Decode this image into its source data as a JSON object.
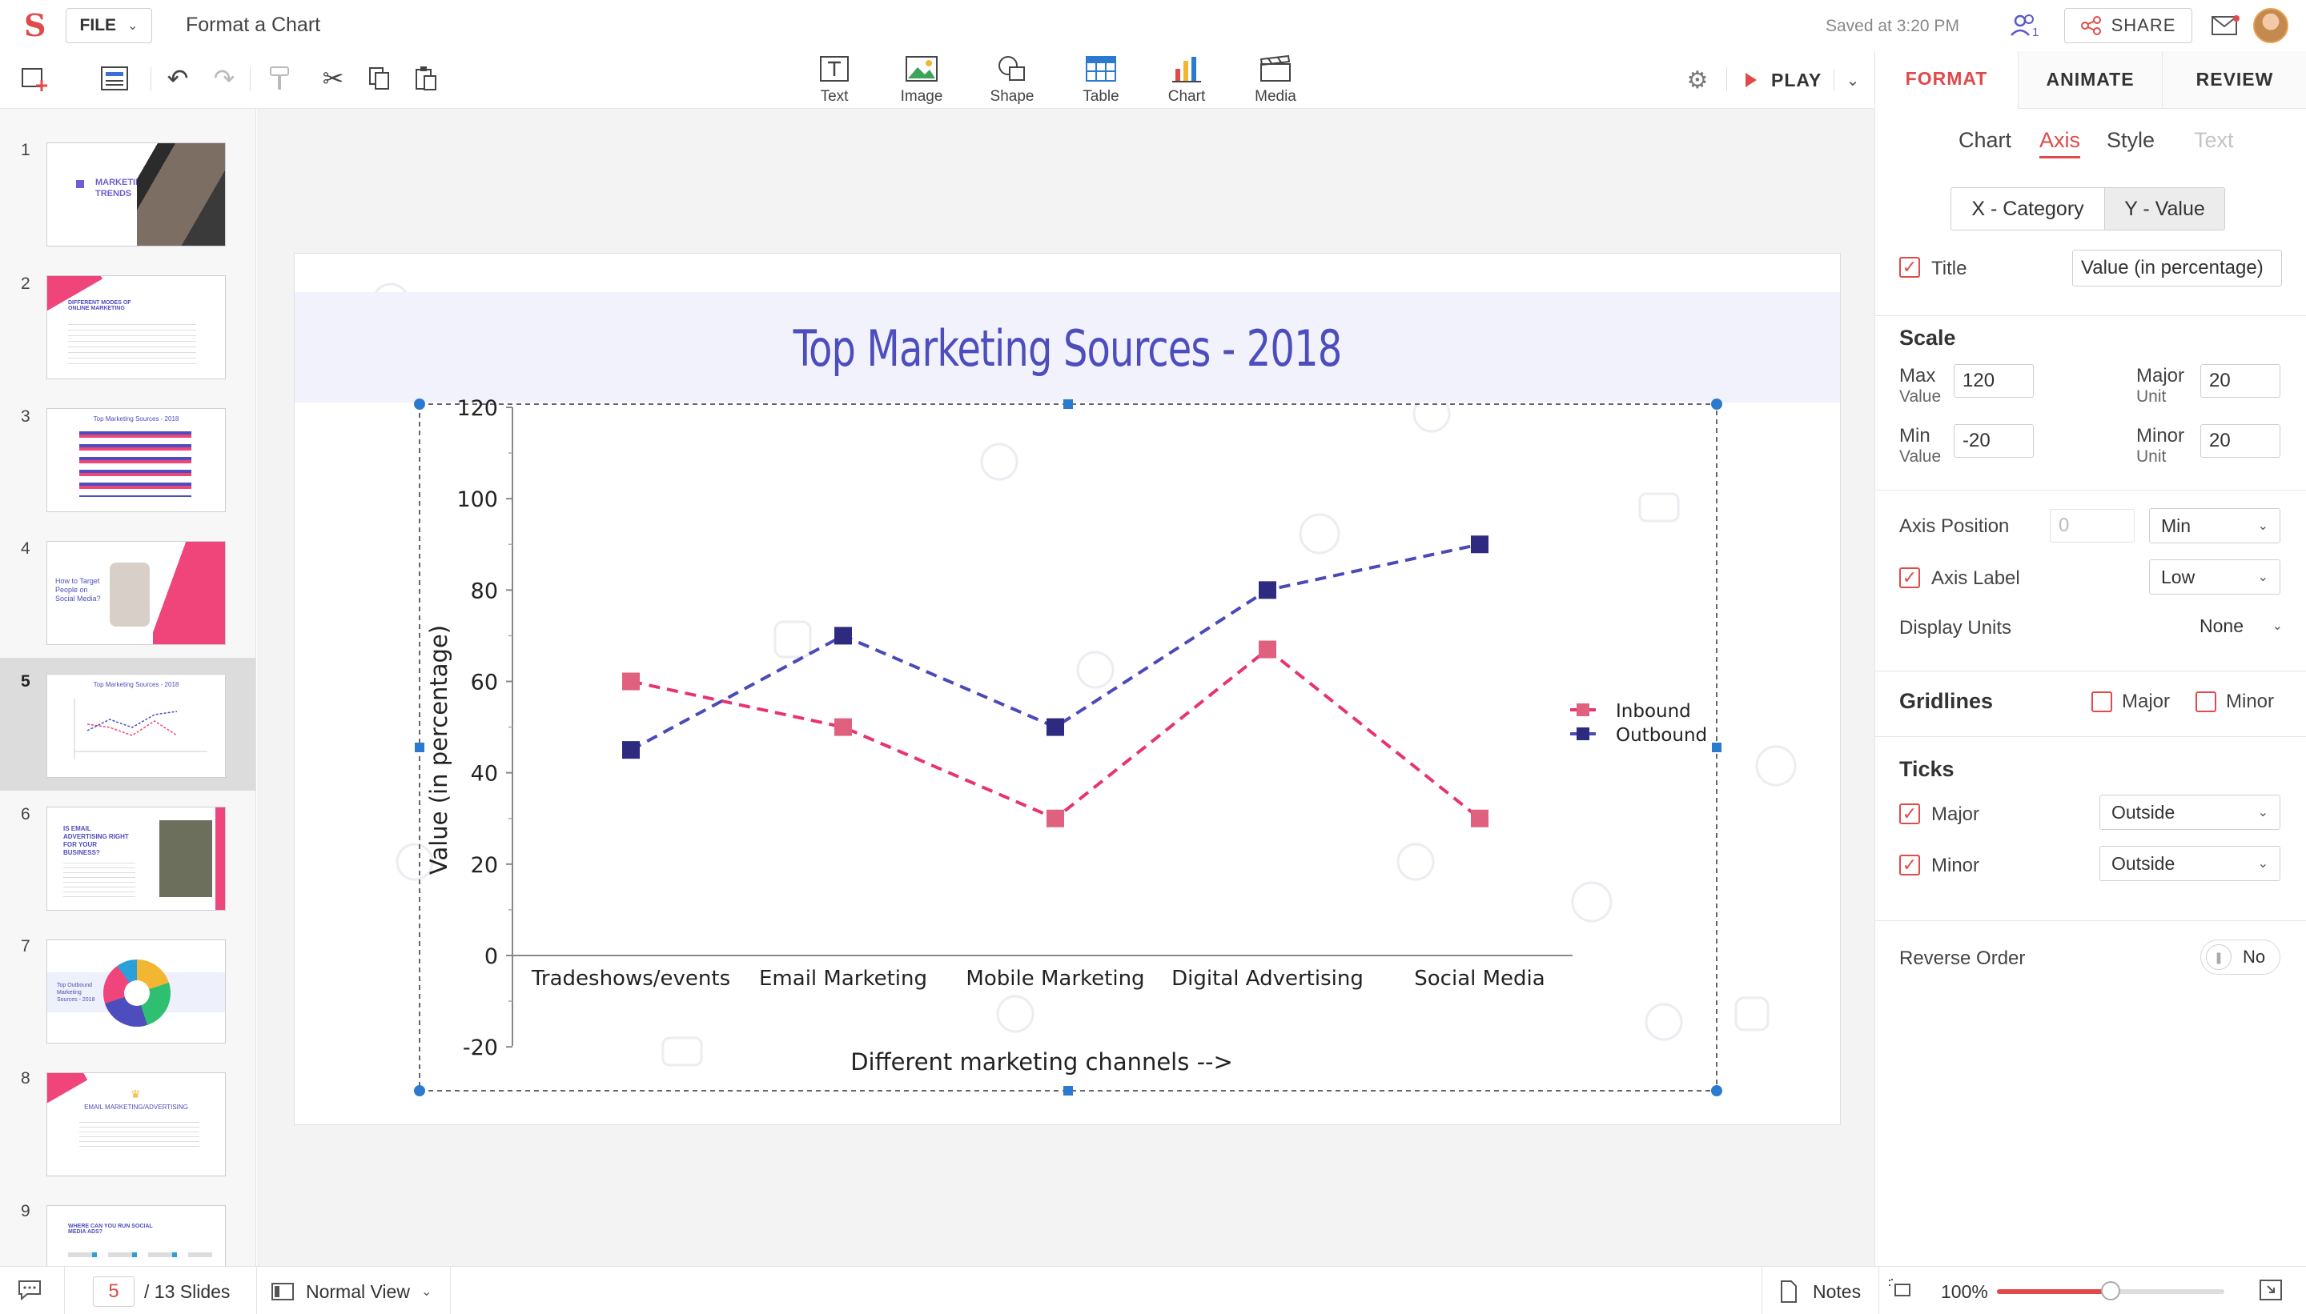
{
  "app": {
    "document_title": "Format a Chart",
    "file_menu": "FILE",
    "saved_status": "Saved at 3:20 PM",
    "share_label": "SHARE",
    "collab_count": "1"
  },
  "ribbon": [
    {
      "label": "Text",
      "icon": "text-box-icon"
    },
    {
      "label": "Image",
      "icon": "image-icon"
    },
    {
      "label": "Shape",
      "icon": "shape-icon"
    },
    {
      "label": "Table",
      "icon": "table-icon"
    },
    {
      "label": "Chart",
      "icon": "chart-icon"
    },
    {
      "label": "Media",
      "icon": "media-icon"
    }
  ],
  "play_label": "PLAY",
  "panel": {
    "tabs": [
      "FORMAT",
      "ANIMATE",
      "REVIEW"
    ],
    "subtabs": [
      "Chart",
      "Axis",
      "Style",
      "Text"
    ],
    "axis_toggle": [
      "X - Category",
      "Y - Value"
    ],
    "title_label": "Title",
    "title_value": "Value (in percentage)",
    "scale_heading": "Scale",
    "max_label": "Max",
    "value_word": "Value",
    "max_value": "120",
    "min_label": "Min",
    "min_value": "-20",
    "major_label": "Major",
    "unit_word": "Unit",
    "major_unit": "20",
    "minor_label": "Minor",
    "minor_unit": "20",
    "axis_position_label": "Axis Position",
    "axis_position_input": "0",
    "axis_position_select": "Min",
    "axis_label_label": "Axis Label",
    "axis_label_select": "Low",
    "display_units_label": "Display Units",
    "display_units_select": "None",
    "gridlines_heading": "Gridlines",
    "grid_major": "Major",
    "grid_minor": "Minor",
    "ticks_heading": "Ticks",
    "ticks_major": "Major",
    "ticks_major_select": "Outside",
    "ticks_minor": "Minor",
    "ticks_minor_select": "Outside",
    "reverse_order_label": "Reverse Order",
    "reverse_order_value": "No"
  },
  "slides_nav": {
    "numbers": [
      "1",
      "2",
      "3",
      "4",
      "5",
      "6",
      "7",
      "8",
      "9"
    ],
    "current": "5",
    "total": "/ 13 Slides"
  },
  "statusbar": {
    "view": "Normal View",
    "notes": "Notes",
    "zoom": "100%",
    "zoom_level": 0.5
  },
  "slide_title": "Top Marketing Sources - 2018",
  "thumb_texts": {
    "t1": "MARKETING TRENDS",
    "t2": "DIFFERENT MODES OF ONLINE MARKETING",
    "t3": "Top Marketing Sources - 2018",
    "t4": "How to Target People on Social Media?",
    "t5": "Top Marketing Sources - 2018",
    "t6": "IS EMAIL ADVERTISING RIGHT FOR YOUR BUSINESS?",
    "t7": "Top Outbound Marketing Sources - 2018",
    "t8": "EMAIL MARKETING/ADVERTISING",
    "t9": "WHERE CAN YOU RUN SOCIAL MEDIA ADS?"
  },
  "colors": {
    "accent": "#e04a4a",
    "inbound": "#e8336f",
    "outbound": "#4a4ab8",
    "title": "#4d4dbd"
  },
  "chart_data": {
    "type": "line",
    "title": "Top Marketing Sources - 2018",
    "xlabel": "Different marketing channels -->",
    "ylabel": "Value (in percentage)",
    "categories": [
      "Tradeshows/events",
      "Email Marketing",
      "Mobile Marketing",
      "Digital Advertising",
      "Social Media"
    ],
    "series": [
      {
        "name": "Inbound",
        "values": [
          60,
          50,
          30,
          67,
          30
        ],
        "color": "#e8336f"
      },
      {
        "name": "Outbound",
        "values": [
          45,
          70,
          50,
          80,
          90
        ],
        "color": "#4a4ab8"
      }
    ],
    "ylim": [
      -20,
      120
    ],
    "yticks": [
      "120",
      "100",
      "80",
      "60",
      "40",
      "20",
      "0",
      "-20"
    ],
    "grid": false,
    "legend": "right"
  }
}
